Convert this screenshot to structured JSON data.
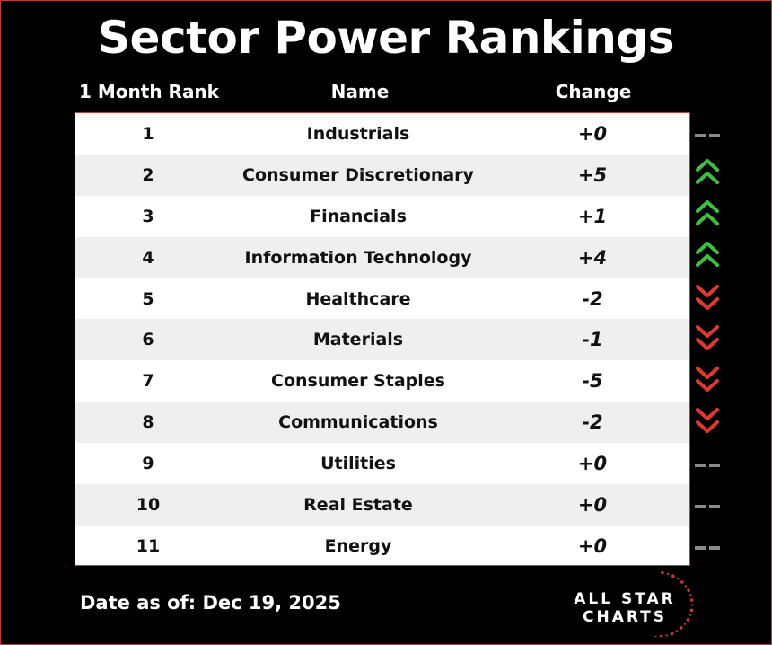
{
  "title": "Sector Power Rankings",
  "headers": {
    "rank": "1 Month Rank",
    "name": "Name",
    "change": "Change"
  },
  "rows": [
    {
      "rank": "1",
      "name": "Industrials",
      "change": "+0",
      "direction": "flat"
    },
    {
      "rank": "2",
      "name": "Consumer Discretionary",
      "change": "+5",
      "direction": "up"
    },
    {
      "rank": "3",
      "name": "Financials",
      "change": "+1",
      "direction": "up"
    },
    {
      "rank": "4",
      "name": "Information Technology",
      "change": "+4",
      "direction": "up"
    },
    {
      "rank": "5",
      "name": "Healthcare",
      "change": "-2",
      "direction": "down"
    },
    {
      "rank": "6",
      "name": "Materials",
      "change": "-1",
      "direction": "down"
    },
    {
      "rank": "7",
      "name": "Consumer Staples",
      "change": "-5",
      "direction": "down"
    },
    {
      "rank": "8",
      "name": "Communications",
      "change": "-2",
      "direction": "down"
    },
    {
      "rank": "9",
      "name": "Utilities",
      "change": "+0",
      "direction": "flat"
    },
    {
      "rank": "10",
      "name": "Real Estate",
      "change": "+0",
      "direction": "flat"
    },
    {
      "rank": "11",
      "name": "Energy",
      "change": "+0",
      "direction": "flat"
    }
  ],
  "footer": {
    "date_text": "Date as of: Dec 19, 2025"
  },
  "logo": {
    "line1": "ALL STAR",
    "line2": "CHARTS"
  },
  "colors": {
    "up": "#3fbf3f",
    "down": "#e03a2f",
    "flat": "#8a8a8a",
    "border": "#c23a36"
  },
  "icons": {
    "up": "double-chevron-up-icon",
    "down": "double-chevron-down-icon",
    "flat": "dash-icon"
  }
}
